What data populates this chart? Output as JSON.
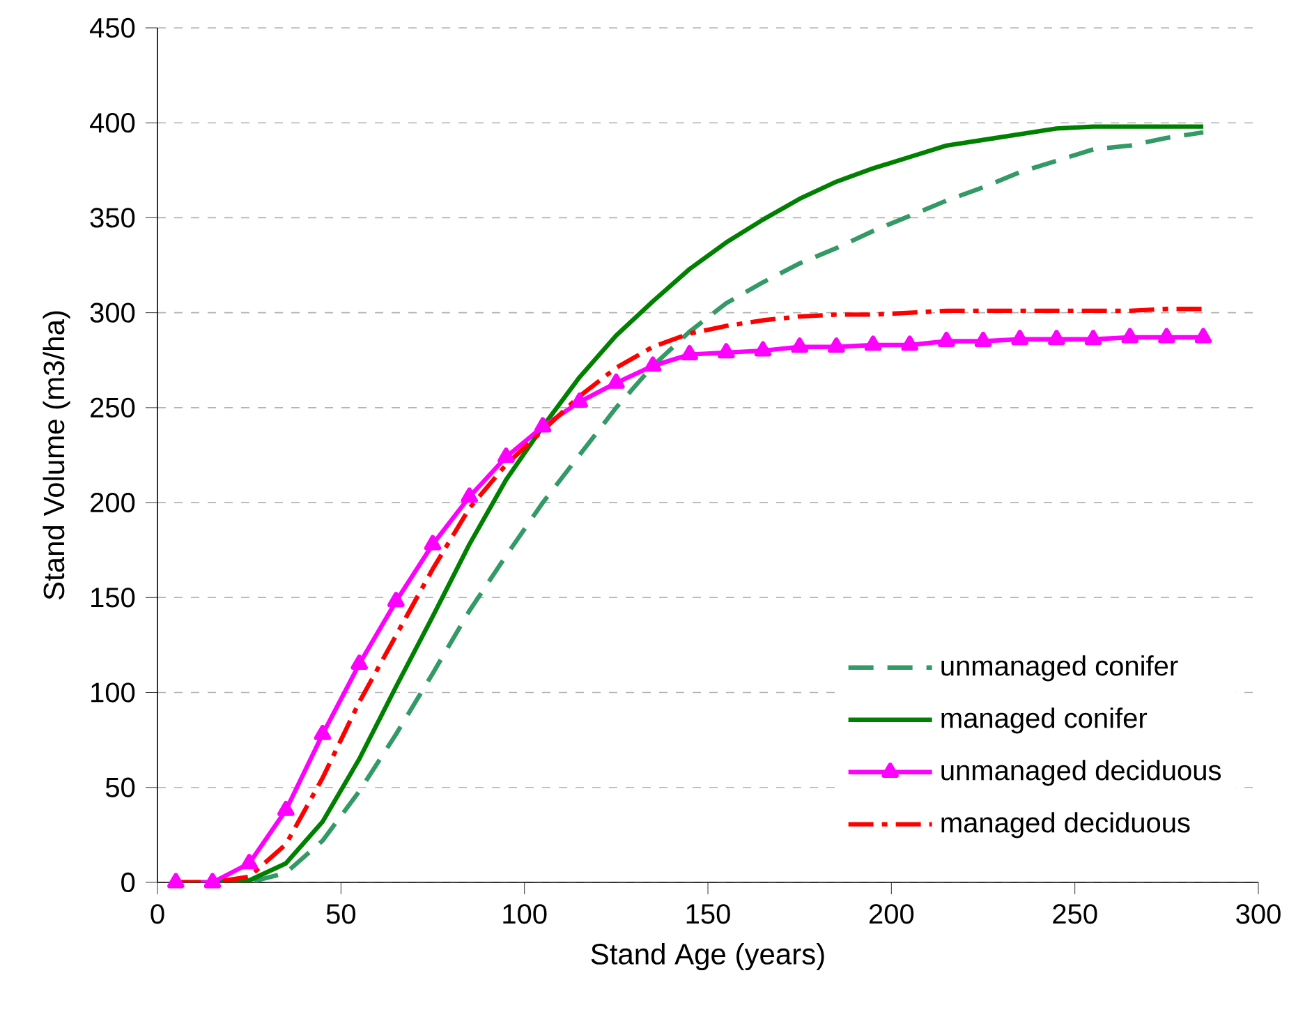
{
  "chart_data": {
    "type": "line",
    "xlabel": "Stand Age (years)",
    "ylabel": "Stand Volume (m3/ha)",
    "xlim": [
      0,
      300
    ],
    "xticks": [
      0,
      50,
      100,
      150,
      200,
      250,
      300
    ],
    "ylim": [
      0,
      450
    ],
    "yticks": [
      0,
      50,
      100,
      150,
      200,
      250,
      300,
      350,
      400,
      450
    ],
    "grid": "y",
    "legend": "bottom right",
    "x": [
      5,
      15,
      25,
      35,
      45,
      55,
      65,
      75,
      85,
      95,
      105,
      115,
      125,
      135,
      145,
      155,
      165,
      175,
      185,
      195,
      205,
      215,
      225,
      235,
      245,
      255,
      265,
      275,
      285
    ],
    "series": [
      {
        "name": "unmanaged conifer",
        "color": "#339966",
        "line_style": "dashed",
        "marker": "none",
        "values": [
          0,
          0,
          0,
          5,
          22,
          48,
          78,
          110,
          143,
          172,
          200,
          225,
          250,
          272,
          290,
          305,
          316,
          326,
          334,
          343,
          351,
          359,
          366,
          374,
          380,
          386,
          388,
          392,
          395
        ]
      },
      {
        "name": "managed conifer",
        "color": "#008000",
        "line_style": "solid",
        "marker": "none",
        "values": [
          0,
          0,
          1,
          10,
          32,
          65,
          103,
          140,
          178,
          212,
          240,
          266,
          288,
          306,
          323,
          337,
          349,
          360,
          369,
          376,
          382,
          388,
          391,
          394,
          397,
          398,
          398,
          398,
          398
        ]
      },
      {
        "name": "unmanaged deciduous",
        "color": "#ff00ff",
        "line_style": "solid",
        "marker": "triangle",
        "values": [
          0,
          0,
          10,
          38,
          78,
          115,
          148,
          178,
          203,
          224,
          240,
          253,
          263,
          272,
          278,
          279,
          280,
          282,
          282,
          283,
          283,
          285,
          285,
          286,
          286,
          286,
          287,
          287,
          287
        ]
      },
      {
        "name": "managed deciduous",
        "color": "#ff0000",
        "line_style": "dashdot",
        "marker": "none",
        "values": [
          0,
          0,
          3,
          20,
          55,
          95,
          130,
          165,
          197,
          220,
          238,
          256,
          271,
          282,
          289,
          293,
          296,
          298,
          299,
          299,
          300,
          301,
          301,
          301,
          301,
          301,
          301,
          302,
          302
        ]
      }
    ]
  }
}
